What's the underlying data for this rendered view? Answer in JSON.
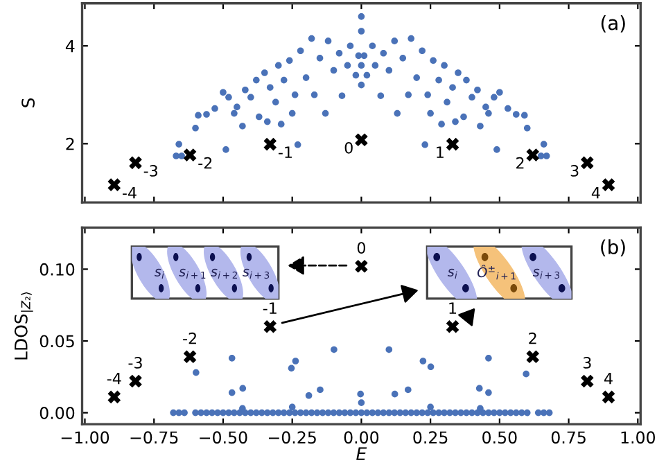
{
  "chart_data": [
    {
      "type": "scatter",
      "ylabel": "S",
      "xlim": [
        -1.01,
        1.01
      ],
      "ylim": [
        0.8,
        4.87
      ],
      "xticks": [
        -1.0,
        -0.75,
        -0.5,
        -0.25,
        0.0,
        0.25,
        0.5,
        0.75,
        1.0
      ],
      "yticks": [
        2,
        4
      ],
      "tick_labels": "y",
      "grid": false,
      "legend": false,
      "series": [
        {
          "color": "#4a72b8",
          "marker": "circle",
          "x": [
            -0.67,
            -0.66,
            -0.65,
            -0.6,
            -0.59,
            -0.56,
            -0.53,
            -0.5,
            -0.49,
            -0.48,
            -0.46,
            -0.45,
            -0.43,
            -0.42,
            -0.4,
            -0.38,
            -0.37,
            -0.35,
            -0.34,
            -0.33,
            -0.31,
            -0.3,
            -0.29,
            -0.28,
            -0.26,
            -0.25,
            -0.24,
            -0.23,
            -0.22,
            -0.2,
            -0.18,
            -0.17,
            -0.15,
            -0.13,
            -0.12,
            -0.1,
            -0.08,
            -0.07,
            -0.05,
            -0.04,
            -0.02,
            -0.01,
            0,
            0,
            0,
            0,
            0.01,
            0.02,
            0.04,
            0.05,
            0.07,
            0.08,
            0.1,
            0.12,
            0.13,
            0.15,
            0.17,
            0.18,
            0.2,
            0.22,
            0.23,
            0.24,
            0.25,
            0.26,
            0.28,
            0.29,
            0.3,
            0.31,
            0.33,
            0.34,
            0.35,
            0.37,
            0.38,
            0.4,
            0.42,
            0.43,
            0.45,
            0.46,
            0.48,
            0.49,
            0.5,
            0.53,
            0.56,
            0.59,
            0.6,
            0.65,
            0.66,
            0.67
          ],
          "values": [
            1.75,
            1.99,
            1.75,
            2.32,
            2.58,
            2.6,
            2.72,
            3.05,
            1.88,
            2.95,
            2.62,
            2.75,
            2.36,
            3.1,
            2.95,
            3.3,
            2.55,
            3.45,
            2.45,
            3.15,
            2.85,
            3.6,
            2.4,
            3.3,
            3.7,
            2.62,
            3.0,
            1.98,
            3.9,
            3.35,
            4.15,
            3.0,
            3.75,
            2.62,
            4.1,
            3.5,
            3.85,
            2.98,
            3.6,
            4.0,
            3.4,
            3.8,
            4.6,
            4.3,
            3.6,
            3.2,
            3.8,
            3.4,
            4.0,
            3.6,
            2.98,
            3.85,
            3.5,
            4.1,
            2.62,
            3.75,
            3.0,
            4.15,
            3.35,
            3.9,
            1.98,
            3.0,
            2.62,
            3.7,
            3.3,
            2.4,
            3.6,
            2.85,
            3.15,
            2.45,
            3.45,
            2.55,
            3.3,
            2.95,
            3.1,
            2.36,
            2.75,
            2.62,
            2.95,
            1.88,
            3.05,
            2.72,
            2.6,
            2.58,
            2.32,
            1.75,
            1.99,
            1.75
          ]
        },
        {
          "color": "#000000",
          "marker": "cross",
          "x": [
            -0.894,
            -0.817,
            -0.62,
            -0.33,
            0.0,
            0.33,
            0.62,
            0.817,
            0.894
          ],
          "values": [
            1.16,
            1.61,
            1.77,
            1.99,
            2.08,
            1.99,
            1.77,
            1.61,
            1.16
          ]
        }
      ],
      "annotations": [
        "(a)",
        {
          "text": "-4",
          "x": -0.894,
          "y": 1.16
        },
        {
          "text": "-3",
          "x": -0.817,
          "y": 1.61
        },
        {
          "text": "-2",
          "x": -0.62,
          "y": 1.77
        },
        {
          "text": "-1",
          "x": -0.33,
          "y": 1.99
        },
        {
          "text": "0",
          "x": 0.0,
          "y": 2.08
        },
        {
          "text": "1",
          "x": 0.33,
          "y": 1.99
        },
        {
          "text": "2",
          "x": 0.62,
          "y": 1.77
        },
        {
          "text": "3",
          "x": 0.817,
          "y": 1.61
        },
        {
          "text": "4",
          "x": 0.894,
          "y": 1.16
        }
      ]
    },
    {
      "type": "scatter",
      "xlabel": "E",
      "ylabel": "LDOS$_{|Z₂⟩}$",
      "xlim": [
        -1.01,
        1.01
      ],
      "ylim": [
        -0.008,
        0.129
      ],
      "xticks": [
        {
          "value": -1.0,
          "label": "−1.00"
        },
        {
          "value": -0.75,
          "label": "−0.75"
        },
        {
          "value": -0.5,
          "label": "−0.50"
        },
        {
          "value": -0.25,
          "label": "−0.25"
        },
        {
          "value": 0.0,
          "label": "0.00"
        },
        {
          "value": 0.25,
          "label": "0.25"
        },
        {
          "value": 0.5,
          "label": "0.50"
        },
        {
          "value": 0.75,
          "label": "0.75"
        },
        {
          "value": 1.0,
          "label": "1.00"
        }
      ],
      "yticks": [
        {
          "value": 0.0,
          "label": "0.00"
        },
        {
          "value": 0.05,
          "label": "0.05"
        },
        {
          "value": 0.1,
          "label": "0.10"
        }
      ],
      "grid": false,
      "legend": false,
      "series": [
        {
          "color": "#4a72b8",
          "marker": "circle",
          "x": [
            -0.68,
            -0.66,
            -0.64,
            -0.6,
            -0.58,
            -0.56,
            -0.54,
            -0.52,
            -0.5,
            -0.48,
            -0.46,
            -0.44,
            -0.42,
            -0.4,
            -0.38,
            -0.36,
            -0.34,
            -0.32,
            -0.3,
            -0.28,
            -0.26,
            -0.24,
            -0.22,
            -0.2,
            -0.18,
            -0.16,
            -0.14,
            -0.12,
            -0.1,
            -0.08,
            -0.06,
            -0.04,
            -0.02,
            0,
            0.02,
            0.04,
            0.06,
            0.08,
            0.1,
            0.12,
            0.14,
            0.16,
            0.18,
            0.2,
            0.22,
            0.24,
            0.26,
            0.28,
            0.3,
            0.32,
            0.34,
            0.36,
            0.38,
            0.4,
            0.42,
            0.44,
            0.46,
            0.48,
            0.5,
            0.52,
            0.54,
            0.56,
            0.58,
            0.6,
            0.64,
            0.66,
            0.68,
            -0.598,
            -0.468,
            -0.468,
            -0.429,
            -0.253,
            -0.238,
            -0.19,
            -0.149,
            -0.099,
            -0.003,
            0.0,
            0.1,
            0.121,
            0.169,
            0.223,
            0.251,
            0.427,
            0.46,
            0.46,
            0.596,
            -0.43,
            -0.25,
            0.25,
            0.43
          ],
          "values": [
            0,
            0,
            0,
            0,
            0,
            0,
            0,
            0,
            0,
            0,
            0,
            0,
            0,
            0,
            0,
            0,
            0,
            0,
            0,
            0,
            0,
            0,
            0,
            0,
            0,
            0,
            0,
            0,
            0,
            0,
            0,
            0,
            0,
            0,
            0,
            0,
            0,
            0,
            0,
            0,
            0,
            0,
            0,
            0,
            0,
            0,
            0,
            0,
            0,
            0,
            0,
            0,
            0,
            0,
            0,
            0,
            0,
            0,
            0,
            0,
            0,
            0,
            0,
            0,
            0,
            0,
            0,
            0.028,
            0.038,
            0.014,
            0.017,
            0.031,
            0.036,
            0.012,
            0.016,
            0.044,
            0.013,
            0.007,
            0.044,
            0.013,
            0.016,
            0.036,
            0.032,
            0.017,
            0.038,
            0.014,
            0.027,
            0.003,
            0.004,
            0.004,
            0.003
          ]
        },
        {
          "color": "#000000",
          "marker": "cross",
          "x": [
            -0.894,
            -0.817,
            -0.62,
            -0.33,
            0.0,
            0.33,
            0.62,
            0.817,
            0.894
          ],
          "values": [
            0.011,
            0.022,
            0.039,
            0.06,
            0.102,
            0.06,
            0.039,
            0.022,
            0.011
          ]
        }
      ],
      "annotations": [
        "(b)",
        "s$_{i}$",
        "s$_{i+1}$",
        "s$_{i+2}$",
        "s$_{i+3}$",
        "s$_{i}$",
        "Ô$^{±}$$_{i+1}$",
        "s$_{i+3}$",
        {
          "text": "-4",
          "x": -0.894,
          "y": 0.011
        },
        {
          "text": "-3",
          "x": -0.817,
          "y": 0.022
        },
        {
          "text": "-2",
          "x": -0.62,
          "y": 0.039
        },
        {
          "text": "-1",
          "x": -0.33,
          "y": 0.06
        },
        {
          "text": "0",
          "x": 0.0,
          "y": 0.102
        },
        {
          "text": "1",
          "x": 0.33,
          "y": 0.06
        },
        {
          "text": "2",
          "x": 0.62,
          "y": 0.039
        },
        {
          "text": "3",
          "x": 0.817,
          "y": 0.022
        },
        {
          "text": "4",
          "x": 0.894,
          "y": 0.011
        }
      ]
    }
  ]
}
